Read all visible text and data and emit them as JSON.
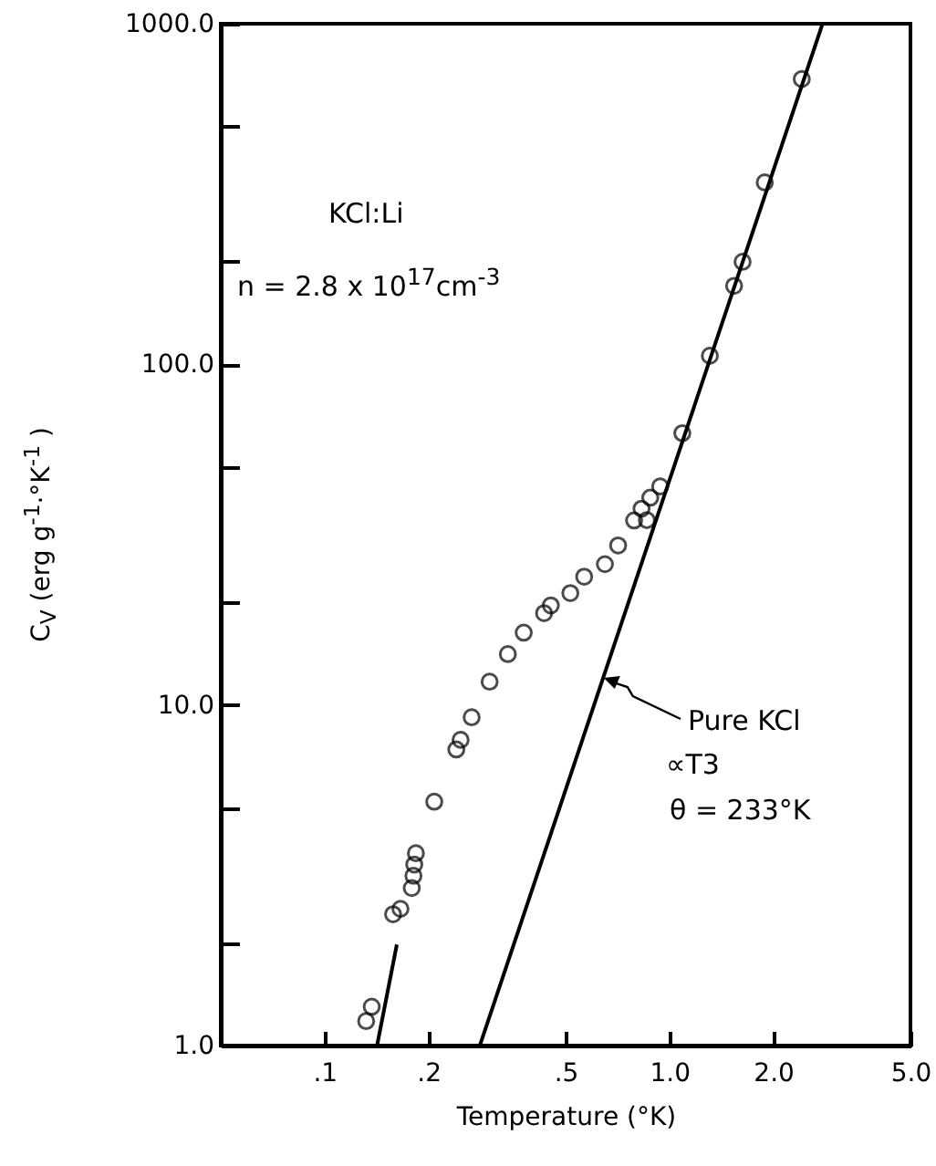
{
  "chart_data": {
    "type": "scatter",
    "xlabel": "Temperature (°K)",
    "ylabel": "C$_{V}$  (erg  g$^{-1}$·°K$^{-1}$ )",
    "log": "xy",
    "grid": false,
    "xlim": [
      0.05,
      5.0
    ],
    "xticks": [
      {
        "value": 0.1,
        "label": ".1"
      },
      {
        "value": 0.2,
        "label": ".2"
      },
      {
        "value": 0.5,
        "label": ".5"
      },
      {
        "value": 1,
        "label": "1.0"
      },
      {
        "value": 2,
        "label": "2.0"
      },
      {
        "value": 5,
        "label": "5.0"
      }
    ],
    "ylim": [
      1,
      1000
    ],
    "yticks": [
      {
        "value": 1,
        "label": "1.0"
      },
      {
        "value": 2,
        "label": null
      },
      {
        "value": 5,
        "label": null
      },
      {
        "value": 10,
        "label": "10.0"
      },
      {
        "value": 20,
        "label": null
      },
      {
        "value": 50,
        "label": null
      },
      {
        "value": 100,
        "label": "100.0"
      },
      {
        "value": 200,
        "label": null
      },
      {
        "value": 500,
        "label": null
      },
      {
        "value": 1000,
        "label": "1000.0"
      }
    ],
    "series": [
      {
        "marker": "circle",
        "color": "#000000",
        "x": [
          0.132,
          0.137,
          0.158,
          0.166,
          0.179,
          0.181,
          0.182,
          0.184,
          0.208,
          0.241,
          0.248,
          0.267,
          0.301,
          0.34,
          0.378,
          0.433,
          0.453,
          0.516,
          0.566,
          0.65,
          0.71,
          0.79,
          0.83,
          0.86,
          0.88,
          0.94,
          1.09,
          1.31,
          1.54,
          1.63,
          1.89,
          2.42
        ],
        "values": [
          1.18,
          1.3,
          2.43,
          2.52,
          2.9,
          3.15,
          3.4,
          3.67,
          5.2,
          7.4,
          7.9,
          9.2,
          11.7,
          14.1,
          16.3,
          18.6,
          19.6,
          21.3,
          23.8,
          25.9,
          29.4,
          34.8,
          37.7,
          34.9,
          40.6,
          43.8,
          62.8,
          106,
          170,
          200,
          342,
          688
        ]
      },
      {
        "type": "line",
        "color": "#000000",
        "x": [
          0.142,
          0.162
        ],
        "values": [
          1,
          1.98
        ]
      },
      {
        "type": "line",
        "color": "#000000",
        "x": [
          0.282,
          2.78
        ],
        "values": [
          1,
          1000
        ]
      }
    ],
    "annotations": [
      "KCl:Li",
      "n = 2.8 x 10$^{17}$cm$^{-3}$",
      {
        "text": "Pure KCl",
        "x": 0.645,
        "y": 12
      },
      "∝T3",
      "θ = 233°K"
    ]
  }
}
